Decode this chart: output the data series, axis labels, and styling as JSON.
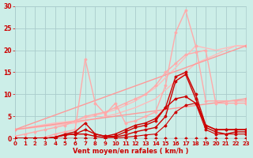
{
  "xlabel": "Vent moyen/en rafales ( km/h )",
  "bg_color": "#cceee8",
  "grid_color": "#aacccc",
  "text_color": "#cc0000",
  "xlim": [
    0,
    23
  ],
  "ylim": [
    0,
    30
  ],
  "xticks": [
    0,
    1,
    2,
    3,
    4,
    5,
    6,
    7,
    8,
    9,
    10,
    11,
    12,
    13,
    14,
    15,
    16,
    17,
    18,
    19,
    20,
    21,
    22,
    23
  ],
  "yticks": [
    0,
    5,
    10,
    15,
    20,
    25,
    30
  ],
  "series": [
    {
      "x": [
        0,
        1,
        2,
        3,
        4,
        5,
        6,
        7,
        8,
        9,
        10,
        11,
        12,
        13,
        14,
        15,
        16,
        17,
        18,
        19,
        20,
        21,
        22,
        23
      ],
      "y": [
        0,
        0,
        0,
        0,
        0,
        0,
        0,
        0,
        0,
        0,
        0,
        0,
        0,
        0,
        0,
        0,
        0,
        0,
        0,
        0,
        0,
        0,
        0,
        0
      ],
      "color": "#cc0000",
      "lw": 0.8,
      "marker": "D",
      "ms": 1.5,
      "zorder": 5
    },
    {
      "x": [
        0,
        1,
        2,
        3,
        4,
        5,
        6,
        7,
        8,
        9,
        10,
        11,
        12,
        13,
        14,
        15,
        16,
        17,
        18,
        19,
        20,
        21,
        22,
        23
      ],
      "y": [
        0,
        0,
        0,
        0,
        0,
        0,
        0,
        0,
        0,
        0,
        0,
        0.3,
        0.5,
        0.8,
        1,
        3,
        6,
        7.5,
        8,
        2,
        1,
        1,
        1,
        1
      ],
      "color": "#cc0000",
      "lw": 0.8,
      "marker": "D",
      "ms": 1.5,
      "zorder": 5
    },
    {
      "x": [
        0,
        1,
        2,
        3,
        4,
        5,
        6,
        7,
        8,
        9,
        10,
        11,
        12,
        13,
        14,
        15,
        16,
        17,
        18,
        19,
        20,
        21,
        22,
        23
      ],
      "y": [
        0,
        0,
        0,
        0,
        0.3,
        0.8,
        1,
        1,
        0.5,
        0.2,
        0.3,
        0.8,
        1.5,
        2,
        2.5,
        5,
        13,
        14.5,
        9,
        2.5,
        1.5,
        1,
        1.5,
        1.5
      ],
      "color": "#cc0000",
      "lw": 1.0,
      "marker": "D",
      "ms": 1.5,
      "zorder": 5
    },
    {
      "x": [
        0,
        1,
        2,
        3,
        4,
        5,
        6,
        7,
        8,
        9,
        10,
        11,
        12,
        13,
        14,
        15,
        16,
        17,
        18,
        19,
        20,
        21,
        22,
        23
      ],
      "y": [
        0,
        0,
        0,
        0,
        0.3,
        1,
        1.5,
        3.5,
        1,
        0.5,
        0.5,
        1.5,
        2.5,
        3,
        4,
        7,
        14,
        15,
        10,
        3,
        2,
        2,
        2,
        2
      ],
      "color": "#cc0000",
      "lw": 1.0,
      "marker": "D",
      "ms": 1.5,
      "zorder": 5
    },
    {
      "x": [
        0,
        1,
        2,
        3,
        4,
        5,
        6,
        7,
        8,
        9,
        10,
        11,
        12,
        13,
        14,
        15,
        16,
        17,
        18,
        19,
        20,
        21,
        22,
        23
      ],
      "y": [
        0,
        0,
        0,
        0,
        0.3,
        0.8,
        1,
        2,
        1,
        0.5,
        1,
        2,
        3,
        3.5,
        4.5,
        7,
        9,
        9.5,
        8,
        3,
        2,
        2,
        2,
        2
      ],
      "color": "#cc0000",
      "lw": 1.0,
      "marker": "D",
      "ms": 1.5,
      "zorder": 5
    },
    {
      "x": [
        0,
        23
      ],
      "y": [
        2,
        9
      ],
      "color": "#ff9999",
      "lw": 1.0,
      "marker": "D",
      "ms": 1.5,
      "zorder": 3
    },
    {
      "x": [
        0,
        23
      ],
      "y": [
        2,
        21
      ],
      "color": "#ff9999",
      "lw": 1.0,
      "marker": "D",
      "ms": 1.5,
      "zorder": 3
    },
    {
      "x": [
        0,
        1,
        2,
        3,
        4,
        5,
        6,
        7,
        8,
        9,
        10,
        11,
        12,
        13,
        14,
        15,
        16,
        17,
        18,
        19,
        20,
        21,
        22,
        23
      ],
      "y": [
        0,
        0,
        0,
        0.3,
        1,
        1.5,
        2,
        18,
        8,
        5.5,
        8,
        3.5,
        4,
        5,
        6,
        12,
        24,
        29,
        21,
        8.5,
        8.5,
        8.5,
        8.5,
        8.5
      ],
      "color": "#ffaaaa",
      "lw": 1.0,
      "marker": "D",
      "ms": 1.5,
      "zorder": 4
    },
    {
      "x": [
        0,
        1,
        2,
        3,
        4,
        5,
        6,
        7,
        8,
        9,
        10,
        11,
        12,
        13,
        14,
        15,
        16,
        17,
        18,
        19,
        20,
        21,
        22,
        23
      ],
      "y": [
        0.5,
        1,
        1.5,
        2,
        2.5,
        3,
        4,
        5,
        5.5,
        6,
        7,
        8,
        9,
        10,
        12,
        15,
        17,
        19,
        19.5,
        20,
        8,
        8,
        8,
        8
      ],
      "color": "#ffaaaa",
      "lw": 1.0,
      "marker": "D",
      "ms": 1.5,
      "zorder": 3
    },
    {
      "x": [
        0,
        2,
        4,
        6,
        8,
        10,
        12,
        14,
        16,
        18,
        20,
        22,
        23
      ],
      "y": [
        2,
        2.5,
        3,
        3.5,
        4.5,
        5.5,
        7,
        9,
        13,
        17,
        19,
        21,
        21
      ],
      "color": "#ffbbbb",
      "lw": 1.0,
      "marker": null,
      "ms": 0,
      "zorder": 2
    },
    {
      "x": [
        0,
        2,
        4,
        6,
        8,
        10,
        12,
        14,
        16,
        18,
        20,
        22,
        23
      ],
      "y": [
        2,
        2.8,
        3.5,
        4,
        5.2,
        6.5,
        8.5,
        11.5,
        16,
        21,
        20,
        21,
        21
      ],
      "color": "#ffbbbb",
      "lw": 1.0,
      "marker": null,
      "ms": 0,
      "zorder": 2
    }
  ]
}
